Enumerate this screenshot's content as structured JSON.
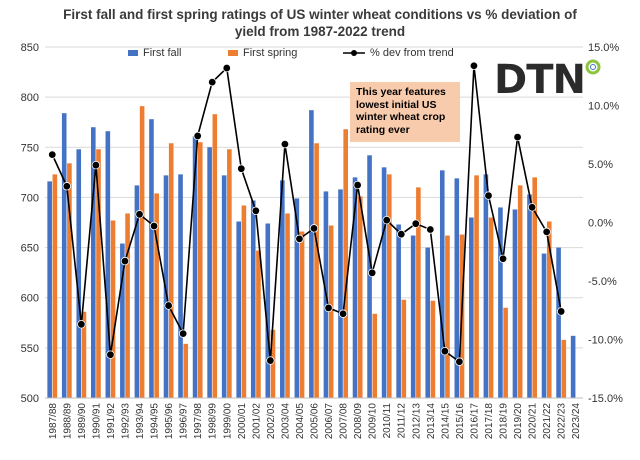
{
  "chart_data": {
    "type": "bar+line",
    "title_lines": [
      "First fall and first spring ratings of US winter wheat conditions vs % deviation of",
      "yield from 1987-2022 trend"
    ],
    "categories": [
      "1987/88",
      "1988/89",
      "1989/90",
      "1990/91",
      "1991/92",
      "1992/93",
      "1993/94",
      "1994/95",
      "1995/96",
      "1996/97",
      "1997/98",
      "1998/99",
      "1999/00",
      "2000/01",
      "2001/02",
      "2002/03",
      "2003/04",
      "2004/05",
      "2005/06",
      "2006/07",
      "2007/08",
      "2008/09",
      "2009/10",
      "2010/11",
      "2011/12",
      "2012/13",
      "2013/14",
      "2014/15",
      "2015/16",
      "2016/17",
      "2017/18",
      "2018/19",
      "2019/20",
      "2020/21",
      "2021/22",
      "2022/23",
      "2023/24"
    ],
    "series": [
      {
        "name": "First fall",
        "axis": "left",
        "type": "bar",
        "color": "#4472c4",
        "values": [
          716,
          784,
          748,
          770,
          766,
          654,
          712,
          778,
          722,
          723,
          761,
          750,
          722,
          676,
          697,
          674,
          717,
          699,
          787,
          706,
          708,
          720,
          742,
          730,
          673,
          662,
          650,
          727,
          719,
          680,
          723,
          690,
          688,
          703,
          644,
          650,
          562
        ]
      },
      {
        "name": "First spring",
        "axis": "left",
        "type": "bar",
        "color": "#ed7d31",
        "values": [
          723,
          734,
          586,
          748,
          677,
          684,
          791,
          704,
          754,
          554,
          755,
          783,
          748,
          692,
          647,
          568,
          684,
          666,
          754,
          672,
          768,
          701,
          584,
          723,
          598,
          710,
          597,
          662,
          663,
          722,
          680,
          590,
          712,
          720,
          676,
          558,
          null
        ]
      },
      {
        "name": "% dev from trend",
        "axis": "right",
        "type": "line",
        "color": "#000000",
        "values": [
          5.8,
          3.1,
          -8.7,
          4.9,
          -11.3,
          -3.3,
          0.7,
          -0.3,
          -7.1,
          -9.5,
          7.4,
          12.0,
          13.2,
          4.6,
          1.0,
          -11.8,
          6.7,
          -1.4,
          -0.5,
          -7.3,
          -7.8,
          3.2,
          -4.3,
          0.2,
          -1.0,
          -0.1,
          -0.6,
          -11.0,
          -11.9,
          13.4,
          2.3,
          -3.1,
          7.3,
          1.3,
          -0.8,
          -7.6,
          null
        ]
      }
    ],
    "y_left": {
      "min": 500,
      "max": 850,
      "ticks": [
        500,
        550,
        600,
        650,
        700,
        750,
        800,
        850
      ],
      "tick_labels": [
        "500",
        "550",
        "600",
        "650",
        "700",
        "750",
        "800",
        "850"
      ]
    },
    "y_right": {
      "min": -15,
      "max": 15,
      "ticks": [
        15,
        10,
        5,
        0,
        -5,
        -10,
        -15
      ],
      "tick_labels": [
        "15.0%",
        "10.0%",
        "5.0%",
        "0.0%",
        "-5.0%",
        "-10.0%",
        "-15.0%"
      ]
    },
    "legend": [
      "First fall",
      "First spring",
      "% dev from trend"
    ],
    "legend_position": "top",
    "annotation_lines": [
      "This year features",
      "lowest initial US",
      "winter wheat crop",
      "rating ever"
    ]
  },
  "logo": {
    "text": "DTN",
    "accent": "#8cc63f"
  }
}
